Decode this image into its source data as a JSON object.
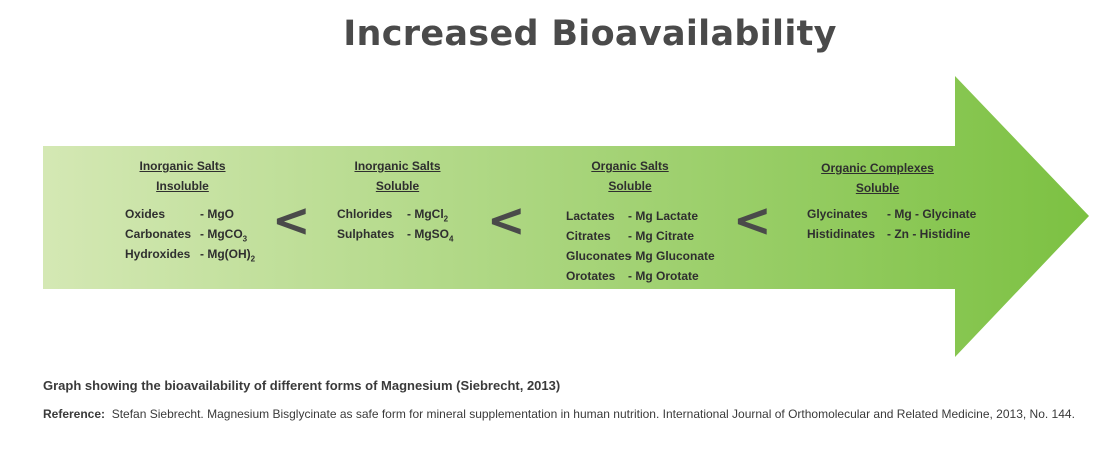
{
  "title": "Increased Bioavailability",
  "colors": {
    "arrow_start": "#d4e8b4",
    "arrow_end": "#7cc142",
    "text": "#3a3a3a"
  },
  "separator": "<",
  "sections": [
    {
      "heading_line1": "Inorganic Salts",
      "heading_line2": "Insoluble",
      "items": [
        {
          "name": "Oxides",
          "form": "- MgO",
          "form_sub": ""
        },
        {
          "name": "Carbonates",
          "form": "- MgCO",
          "form_sub": "3"
        },
        {
          "name": "Hydroxides",
          "form": "- Mg(OH)",
          "form_sub": "2"
        }
      ]
    },
    {
      "heading_line1": "Inorganic Salts",
      "heading_line2": "Soluble",
      "items": [
        {
          "name": "Chlorides",
          "form": "- MgCl",
          "form_sub": "2"
        },
        {
          "name": "Sulphates",
          "form": "- MgSO",
          "form_sub": "4"
        }
      ]
    },
    {
      "heading_line1": "Organic Salts",
      "heading_line2": "Soluble",
      "items": [
        {
          "name": "Lactates",
          "form": "- Mg Lactate",
          "form_sub": ""
        },
        {
          "name": "Citrates",
          "form": "- Mg Citrate",
          "form_sub": ""
        },
        {
          "name": "Gluconates",
          "form": "- Mg Gluconate",
          "form_sub": ""
        },
        {
          "name": "Orotates",
          "form": "- Mg Orotate",
          "form_sub": ""
        }
      ]
    },
    {
      "heading_line1": "Organic Complexes",
      "heading_line2": "Soluble",
      "items": [
        {
          "name": "Glycinates",
          "form": "-  Mg - Glycinate",
          "form_sub": ""
        },
        {
          "name": "Histidinates",
          "form": "-  Zn - Histidine",
          "form_sub": ""
        }
      ]
    }
  ],
  "caption": "Graph showing the bioavailability of different forms of Magnesium (Siebrecht, 2013)",
  "reference": {
    "label": "Reference:",
    "text": "Stefan Siebrecht. Magnesium Bisglycinate as safe form for mineral supplementation in human nutrition. International Journal of Orthomolecular and Related Medicine, 2013, No. 144."
  }
}
